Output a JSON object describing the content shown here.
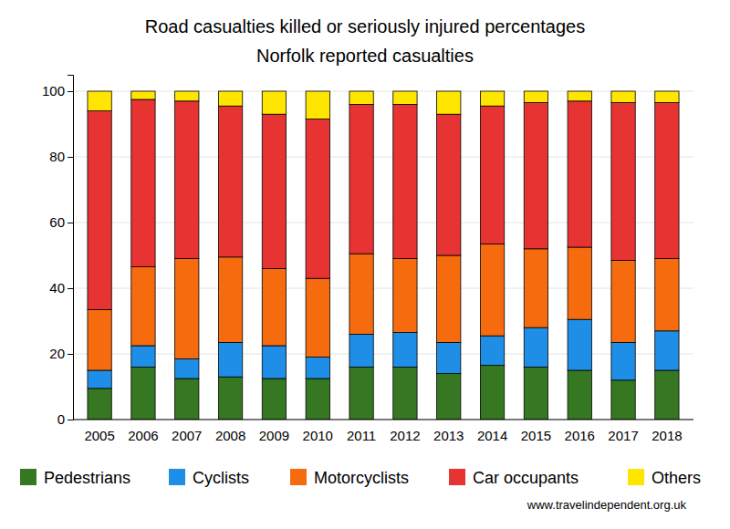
{
  "chart_data": {
    "type": "bar",
    "stacked": true,
    "grid": true,
    "legend": "bottom",
    "title": "Road casualties killed or seriously injured percentages",
    "subtitle": "Norfolk reported casualties",
    "annotations": [
      "www.travelindependent.org.uk"
    ],
    "categories": [
      "2005",
      "2006",
      "2007",
      "2008",
      "2009",
      "2010",
      "2011",
      "2012",
      "2013",
      "2014",
      "2015",
      "2016",
      "2017",
      "2018"
    ],
    "ylim": [
      0,
      105
    ],
    "yticks": [
      0,
      20,
      40,
      60,
      80,
      100
    ],
    "series": [
      {
        "name": "Pedestrians",
        "color": "#367821",
        "values": [
          9.5,
          16,
          12.5,
          13,
          12.5,
          12.5,
          16,
          16,
          14,
          16.5,
          16,
          15,
          12,
          15
        ]
      },
      {
        "name": "Cyclists",
        "color": "#1e8ee6",
        "values": [
          5.5,
          6.5,
          6,
          10.5,
          10,
          6.5,
          10,
          10.5,
          9.5,
          9,
          12,
          15.5,
          11.5,
          12
        ]
      },
      {
        "name": "Motorcyclists",
        "color": "#f66b0e",
        "values": [
          18.5,
          24,
          30.5,
          26,
          23.5,
          24,
          24.5,
          22.5,
          26.5,
          28,
          24,
          22,
          25,
          22
        ]
      },
      {
        "name": "Car occupants",
        "color": "#e83333",
        "values": [
          60.5,
          51,
          48,
          46,
          47,
          48.5,
          45.5,
          47,
          43,
          42,
          44.5,
          44.5,
          48,
          47.5
        ]
      },
      {
        "name": "Others",
        "color": "#ffe600",
        "values": [
          6,
          2.5,
          3,
          4.5,
          7,
          8.5,
          4,
          4,
          7,
          4.5,
          3.5,
          3,
          3.5,
          3.5
        ]
      }
    ]
  }
}
